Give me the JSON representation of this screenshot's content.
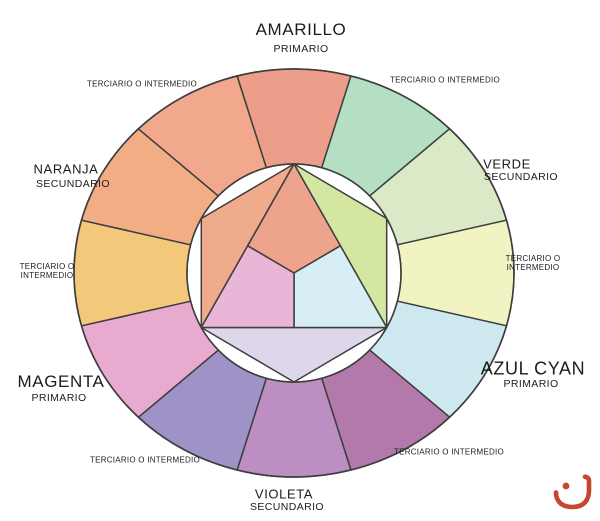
{
  "labels": {
    "amarillo": {
      "name": "AMARILLO",
      "type": "PRIMARIO"
    },
    "verde": {
      "name": "VERDE",
      "type": "SECUNDARIO"
    },
    "azul_cyan": {
      "name": "AZUL CYAN",
      "type": "PRIMARIO"
    },
    "violeta": {
      "name": "VIOLETA",
      "type": "SECUNDARIO"
    },
    "magenta": {
      "name": "MAGENTA",
      "type": "PRIMARIO"
    },
    "naranja": {
      "name": "NARANJA",
      "type": "SECUNDARIO"
    },
    "terciario_single": "TERCIARIO O INTERMEDIO",
    "terciario_line1": "TERCIARIO O",
    "terciario_line2": "INTERMEDIO"
  },
  "wheel": {
    "line_color": "#3e3e3e",
    "segments": [
      {
        "name": "segment-amarillo",
        "position": "12:00",
        "role": "primario",
        "color": "#ec9e8a"
      },
      {
        "name": "segment-terciario-amarillo-verde",
        "position": "1:00",
        "role": "terciario",
        "color": "#b5dfc2"
      },
      {
        "name": "segment-verde",
        "position": "2:00",
        "role": "secundario",
        "color": "#dbeac6"
      },
      {
        "name": "segment-terciario-verde-azul",
        "position": "3:00",
        "role": "terciario",
        "color": "#f1f3c2"
      },
      {
        "name": "segment-azul-cyan",
        "position": "4:00",
        "role": "primario",
        "color": "#cde9ef"
      },
      {
        "name": "segment-terciario-azul-violeta",
        "position": "5:00",
        "role": "terciario",
        "color": "#b379ab"
      },
      {
        "name": "segment-violeta",
        "position": "6:00",
        "role": "secundario",
        "color": "#bd8ec1"
      },
      {
        "name": "segment-terciario-violeta-magenta",
        "position": "7:00",
        "role": "terciario",
        "color": "#9e92c6"
      },
      {
        "name": "segment-magenta",
        "position": "8:00",
        "role": "primario",
        "color": "#e9aad0"
      },
      {
        "name": "segment-terciario-magenta-naranja",
        "position": "9:00",
        "role": "terciario",
        "color": "#f4c87a"
      },
      {
        "name": "segment-naranja",
        "position": "10:00",
        "role": "secundario",
        "color": "#f3ad85"
      },
      {
        "name": "segment-terciario-naranja-amarillo",
        "position": "11:00",
        "role": "terciario",
        "color": "#f2a88d"
      }
    ],
    "inner_corners": [
      {
        "name": "inner-corner-verde",
        "color": "#d3e6a2"
      },
      {
        "name": "inner-corner-violeta",
        "color": "#ded6eb"
      },
      {
        "name": "inner-corner-naranja",
        "color": "#f0aa8c"
      }
    ],
    "inner_kites": [
      {
        "name": "center-kite-top",
        "color": "#eda38c"
      },
      {
        "name": "center-kite-right",
        "color": "#d7eef4"
      },
      {
        "name": "center-kite-left",
        "color": "#eab6d7"
      }
    ]
  },
  "logo": {
    "color": "#c4472e"
  }
}
